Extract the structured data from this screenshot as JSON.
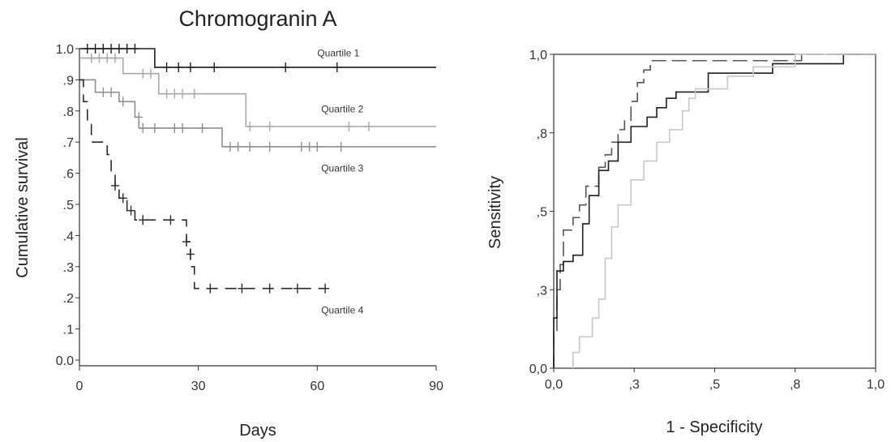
{
  "chart_data": [
    {
      "type": "line",
      "subtype": "kaplan-meier",
      "title": "Chromogranin A",
      "xlabel": "Days",
      "ylabel": "Cumulative survival",
      "xlim": [
        0,
        90
      ],
      "ylim": [
        0,
        1
      ],
      "xticks": [
        "0",
        "30",
        "60",
        "90"
      ],
      "yticks": [
        "0.0",
        ".1",
        ".2",
        ".3",
        ".4",
        ".5",
        ".6",
        ".7",
        ".8",
        ".9",
        "1.0"
      ],
      "grid": false,
      "series": [
        {
          "name": "Quartile 1",
          "color": "#1f1f1f",
          "dash": "",
          "steps": [
            [
              0,
              1.0
            ],
            [
              19,
              0.94
            ],
            [
              90,
              0.94
            ]
          ],
          "censored": [
            [
              2,
              1.0
            ],
            [
              4,
              1.0
            ],
            [
              6,
              1.0
            ],
            [
              8,
              1.0
            ],
            [
              10,
              1.0
            ],
            [
              12,
              1.0
            ],
            [
              14,
              1.0
            ],
            [
              22,
              0.94
            ],
            [
              25,
              0.94
            ],
            [
              28,
              0.94
            ],
            [
              34,
              0.94
            ],
            [
              52,
              0.94
            ],
            [
              65,
              0.94
            ]
          ]
        },
        {
          "name": "Quartile 2",
          "color": "#a8a8a8",
          "dash": "",
          "steps": [
            [
              0,
              0.97
            ],
            [
              11,
              0.92
            ],
            [
              20,
              0.855
            ],
            [
              42,
              0.75
            ],
            [
              90,
              0.75
            ]
          ],
          "censored": [
            [
              3,
              0.97
            ],
            [
              5,
              0.97
            ],
            [
              7,
              0.97
            ],
            [
              9,
              0.97
            ],
            [
              16,
              0.92
            ],
            [
              18,
              0.92
            ],
            [
              22,
              0.855
            ],
            [
              24,
              0.855
            ],
            [
              26,
              0.855
            ],
            [
              29,
              0.855
            ],
            [
              43,
              0.75
            ],
            [
              48,
              0.75
            ],
            [
              68,
              0.75
            ],
            [
              73,
              0.75
            ]
          ]
        },
        {
          "name": "Quartile 3",
          "color": "#8f8f8f",
          "dash": "",
          "steps": [
            [
              0,
              0.9
            ],
            [
              4,
              0.86
            ],
            [
              10,
              0.83
            ],
            [
              14,
              0.78
            ],
            [
              15,
              0.745
            ],
            [
              36,
              0.685
            ],
            [
              90,
              0.685
            ]
          ],
          "censored": [
            [
              6,
              0.86
            ],
            [
              8,
              0.86
            ],
            [
              11,
              0.83
            ],
            [
              15,
              0.78
            ],
            [
              16,
              0.745
            ],
            [
              19,
              0.745
            ],
            [
              24,
              0.745
            ],
            [
              26,
              0.745
            ],
            [
              31,
              0.745
            ],
            [
              38,
              0.685
            ],
            [
              40,
              0.685
            ],
            [
              43,
              0.685
            ],
            [
              48,
              0.685
            ],
            [
              56,
              0.685
            ],
            [
              58,
              0.685
            ],
            [
              60,
              0.685
            ],
            [
              66,
              0.685
            ]
          ]
        },
        {
          "name": "Quartile 4",
          "color": "#2a2a2a",
          "dash": "14,9",
          "steps": [
            [
              0,
              0.9
            ],
            [
              1,
              0.83
            ],
            [
              2,
              0.76
            ],
            [
              3,
              0.7
            ],
            [
              7,
              0.66
            ],
            [
              8,
              0.6
            ],
            [
              9,
              0.56
            ],
            [
              10,
              0.52
            ],
            [
              12,
              0.48
            ],
            [
              14,
              0.45
            ],
            [
              27,
              0.38
            ],
            [
              28,
              0.3
            ],
            [
              29,
              0.23
            ],
            [
              62,
              0.23
            ]
          ],
          "censored": [
            [
              9,
              0.56
            ],
            [
              11,
              0.52
            ],
            [
              13,
              0.48
            ],
            [
              16,
              0.45
            ],
            [
              23,
              0.45
            ],
            [
              27,
              0.38
            ],
            [
              28,
              0.34
            ],
            [
              33,
              0.23
            ],
            [
              41,
              0.23
            ],
            [
              48,
              0.23
            ],
            [
              55,
              0.23
            ],
            [
              62,
              0.23
            ]
          ]
        }
      ],
      "annotations": [
        {
          "text": "Quartile 1",
          "x": 60,
          "y": 0.975
        },
        {
          "text": "Quartile 2",
          "x": 61,
          "y": 0.795
        },
        {
          "text": "Quartile 3",
          "x": 61,
          "y": 0.605
        },
        {
          "text": "Quartile 4",
          "x": 61,
          "y": 0.15
        }
      ]
    },
    {
      "type": "line",
      "subtype": "roc",
      "title": "",
      "xlabel": "1 - Specificity",
      "ylabel": "Sensitivity",
      "xlim": [
        0,
        1
      ],
      "ylim": [
        0,
        1
      ],
      "xticks": [
        "0,0",
        ",3",
        ",5",
        ",8",
        "1,0"
      ],
      "yticks": [
        "0,0",
        ",3",
        ",5",
        ",8",
        "1,0"
      ],
      "grid": false,
      "series": [
        {
          "color": "#555555",
          "dash": "18,7",
          "points": [
            [
              0,
              0
            ],
            [
              0,
              0.12
            ],
            [
              0.01,
              0.12
            ],
            [
              0.01,
              0.25
            ],
            [
              0.02,
              0.25
            ],
            [
              0.02,
              0.33
            ],
            [
              0.03,
              0.33
            ],
            [
              0.03,
              0.44
            ],
            [
              0.06,
              0.44
            ],
            [
              0.06,
              0.48
            ],
            [
              0.08,
              0.48
            ],
            [
              0.08,
              0.52
            ],
            [
              0.1,
              0.52
            ],
            [
              0.1,
              0.58
            ],
            [
              0.14,
              0.58
            ],
            [
              0.14,
              0.64
            ],
            [
              0.16,
              0.64
            ],
            [
              0.16,
              0.68
            ],
            [
              0.18,
              0.68
            ],
            [
              0.18,
              0.72
            ],
            [
              0.2,
              0.72
            ],
            [
              0.2,
              0.76
            ],
            [
              0.22,
              0.76
            ],
            [
              0.22,
              0.79
            ],
            [
              0.24,
              0.79
            ],
            [
              0.24,
              0.85
            ],
            [
              0.26,
              0.85
            ],
            [
              0.26,
              0.91
            ],
            [
              0.28,
              0.91
            ],
            [
              0.28,
              0.95
            ],
            [
              0.3,
              0.95
            ],
            [
              0.3,
              0.98
            ],
            [
              0.77,
              0.98
            ],
            [
              0.77,
              1.0
            ],
            [
              1.0,
              1.0
            ]
          ]
        },
        {
          "color": "#1f1f1f",
          "dash": "",
          "points": [
            [
              0,
              0
            ],
            [
              0,
              0.16
            ],
            [
              0.01,
              0.16
            ],
            [
              0.01,
              0.31
            ],
            [
              0.03,
              0.31
            ],
            [
              0.03,
              0.34
            ],
            [
              0.06,
              0.34
            ],
            [
              0.06,
              0.36
            ],
            [
              0.09,
              0.36
            ],
            [
              0.09,
              0.46
            ],
            [
              0.11,
              0.46
            ],
            [
              0.11,
              0.55
            ],
            [
              0.14,
              0.55
            ],
            [
              0.14,
              0.63
            ],
            [
              0.17,
              0.63
            ],
            [
              0.17,
              0.66
            ],
            [
              0.2,
              0.66
            ],
            [
              0.2,
              0.72
            ],
            [
              0.24,
              0.72
            ],
            [
              0.24,
              0.77
            ],
            [
              0.29,
              0.77
            ],
            [
              0.29,
              0.8
            ],
            [
              0.32,
              0.8
            ],
            [
              0.32,
              0.83
            ],
            [
              0.35,
              0.83
            ],
            [
              0.35,
              0.86
            ],
            [
              0.38,
              0.86
            ],
            [
              0.38,
              0.88
            ],
            [
              0.48,
              0.88
            ],
            [
              0.48,
              0.94
            ],
            [
              0.68,
              0.94
            ],
            [
              0.68,
              0.97
            ],
            [
              0.9,
              0.97
            ],
            [
              0.9,
              1.0
            ],
            [
              1.0,
              1.0
            ]
          ]
        },
        {
          "color": "#c8c8c8",
          "dash": "",
          "points": [
            [
              0.06,
              0
            ],
            [
              0.06,
              0.05
            ],
            [
              0.08,
              0.05
            ],
            [
              0.08,
              0.1
            ],
            [
              0.12,
              0.1
            ],
            [
              0.12,
              0.16
            ],
            [
              0.14,
              0.16
            ],
            [
              0.14,
              0.22
            ],
            [
              0.16,
              0.22
            ],
            [
              0.16,
              0.35
            ],
            [
              0.18,
              0.35
            ],
            [
              0.18,
              0.45
            ],
            [
              0.2,
              0.45
            ],
            [
              0.2,
              0.52
            ],
            [
              0.24,
              0.52
            ],
            [
              0.24,
              0.6
            ],
            [
              0.28,
              0.6
            ],
            [
              0.28,
              0.66
            ],
            [
              0.32,
              0.66
            ],
            [
              0.32,
              0.72
            ],
            [
              0.36,
              0.72
            ],
            [
              0.36,
              0.76
            ],
            [
              0.4,
              0.76
            ],
            [
              0.4,
              0.82
            ],
            [
              0.42,
              0.82
            ],
            [
              0.42,
              0.86
            ],
            [
              0.44,
              0.86
            ],
            [
              0.44,
              0.89
            ],
            [
              0.54,
              0.89
            ],
            [
              0.54,
              0.93
            ],
            [
              0.62,
              0.93
            ],
            [
              0.62,
              0.96
            ],
            [
              0.75,
              0.96
            ],
            [
              0.75,
              1.0
            ],
            [
              1.0,
              1.0
            ]
          ]
        }
      ]
    }
  ]
}
